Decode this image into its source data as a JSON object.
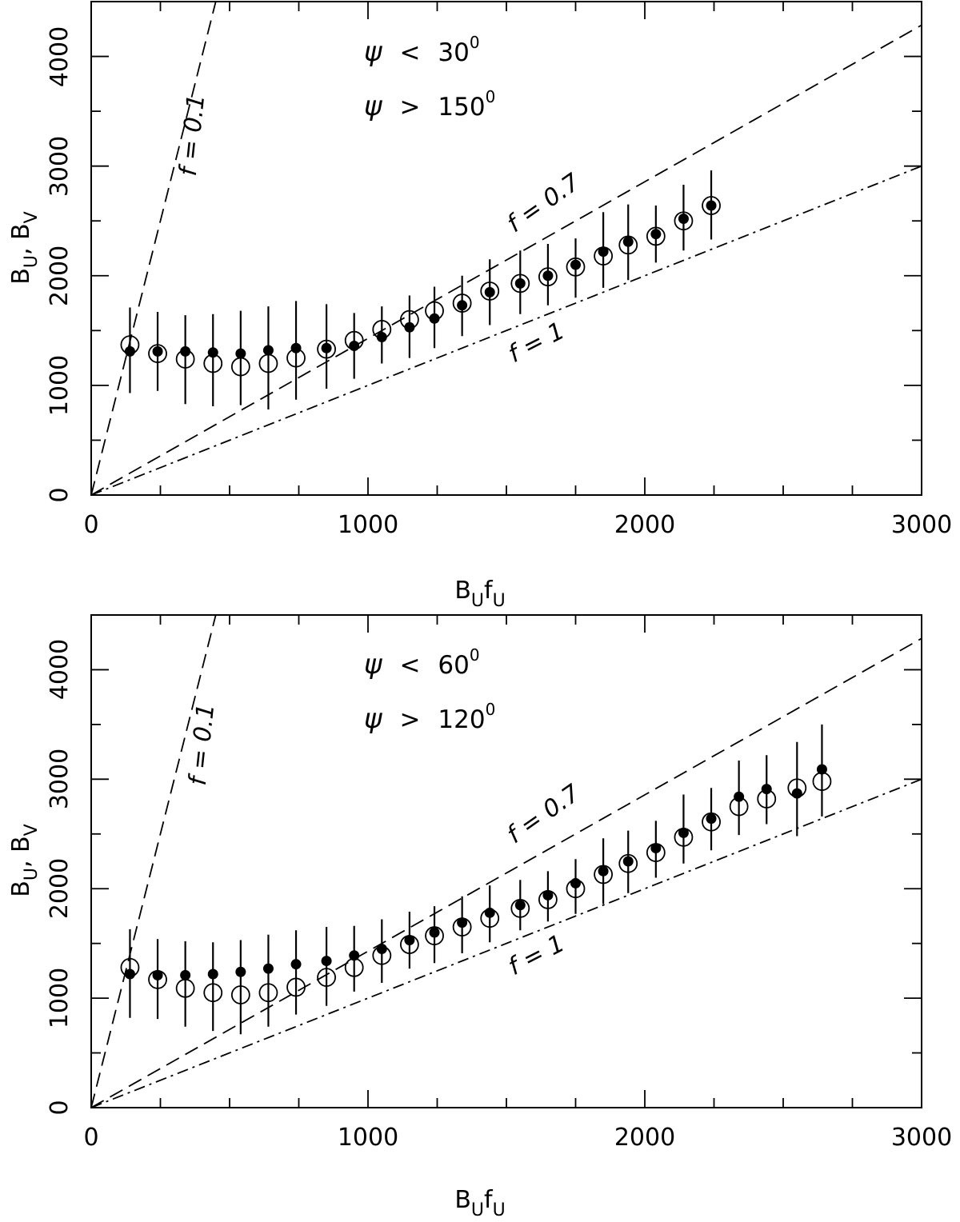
{
  "chart_data": [
    {
      "type": "scatter",
      "xlabel": {
        "main": "B",
        "sub1": "U",
        "mid": "f",
        "sub2": "U"
      },
      "ylabel": {
        "p1": "B",
        "s1": "U",
        "sep": ",  ",
        "p2": "B",
        "s2": "V"
      },
      "xlim": [
        0,
        3000
      ],
      "ylim": [
        0,
        4500
      ],
      "xticks": [
        "0",
        "1000",
        "2000",
        "3000"
      ],
      "yticks": [
        "0",
        "1000",
        "2000",
        "3000",
        "4000"
      ],
      "conditions": [
        {
          "symbol": "ψ",
          "op": "<",
          "value": "30",
          "sup": "0"
        },
        {
          "symbol": "ψ",
          "op": ">",
          "value": "150",
          "sup": "0"
        }
      ],
      "lines": [
        {
          "label": "f = 0.1",
          "slope": 10,
          "style": "dashed"
        },
        {
          "label": "f = 0.7",
          "slope": 1.4286,
          "style": "dashed"
        },
        {
          "label": "f = 1",
          "slope": 1,
          "style": "dashdot"
        }
      ],
      "series": [
        {
          "name": "open circles",
          "marker": "open",
          "x": [
            140,
            240,
            340,
            440,
            540,
            640,
            740,
            850,
            950,
            1050,
            1150,
            1240,
            1340,
            1440,
            1550,
            1650,
            1750,
            1850,
            1940,
            2040,
            2140,
            2240
          ],
          "y": [
            1370,
            1290,
            1240,
            1200,
            1170,
            1200,
            1250,
            1330,
            1410,
            1510,
            1600,
            1680,
            1750,
            1860,
            1930,
            1990,
            2080,
            2180,
            2280,
            2360,
            2500,
            2640
          ]
        },
        {
          "name": "filled circles",
          "marker": "filled",
          "x": [
            140,
            240,
            340,
            440,
            540,
            640,
            740,
            850,
            950,
            1050,
            1150,
            1240,
            1340,
            1440,
            1550,
            1650,
            1750,
            1850,
            1940,
            2040,
            2140,
            2240
          ],
          "y": [
            1310,
            1310,
            1310,
            1300,
            1290,
            1320,
            1340,
            1340,
            1360,
            1440,
            1530,
            1610,
            1730,
            1850,
            1930,
            2000,
            2100,
            2220,
            2310,
            2380,
            2520,
            2640
          ],
          "err_low": [
            930,
            950,
            830,
            810,
            820,
            780,
            870,
            970,
            1060,
            1200,
            1250,
            1340,
            1450,
            1550,
            1650,
            1730,
            1800,
            1890,
            1960,
            2120,
            2230,
            2330
          ],
          "err_high": [
            1710,
            1670,
            1640,
            1650,
            1680,
            1720,
            1770,
            1740,
            1660,
            1720,
            1820,
            1900,
            2000,
            2150,
            2230,
            2290,
            2340,
            2580,
            2650,
            2640,
            2830,
            2960
          ]
        }
      ]
    },
    {
      "type": "scatter",
      "xlabel": {
        "main": "B",
        "sub1": "U",
        "mid": "f",
        "sub2": "U"
      },
      "ylabel": {
        "p1": "B",
        "s1": "U",
        "sep": ",  ",
        "p2": "B",
        "s2": "V"
      },
      "xlim": [
        0,
        3000
      ],
      "ylim": [
        0,
        4500
      ],
      "xticks": [
        "0",
        "1000",
        "2000",
        "3000"
      ],
      "yticks": [
        "0",
        "1000",
        "2000",
        "3000",
        "4000"
      ],
      "conditions": [
        {
          "symbol": "ψ",
          "op": "<",
          "value": "60",
          "sup": "0"
        },
        {
          "symbol": "ψ",
          "op": ">",
          "value": "120",
          "sup": "0"
        }
      ],
      "lines": [
        {
          "label": "f = 0.1",
          "slope": 10,
          "style": "dashed"
        },
        {
          "label": "f = 0.7",
          "slope": 1.4286,
          "style": "dashed"
        },
        {
          "label": "f = 1",
          "slope": 1,
          "style": "dashdot"
        }
      ],
      "series": [
        {
          "name": "open circles",
          "marker": "open",
          "x": [
            140,
            240,
            340,
            440,
            540,
            640,
            740,
            850,
            950,
            1050,
            1150,
            1240,
            1340,
            1440,
            1550,
            1650,
            1750,
            1850,
            1940,
            2040,
            2140,
            2240,
            2340,
            2440,
            2550,
            2640
          ],
          "y": [
            1280,
            1170,
            1090,
            1050,
            1030,
            1050,
            1100,
            1190,
            1280,
            1390,
            1490,
            1570,
            1650,
            1730,
            1820,
            1900,
            2000,
            2130,
            2230,
            2330,
            2470,
            2610,
            2750,
            2820,
            2920,
            2980
          ]
        },
        {
          "name": "filled circles",
          "marker": "filled",
          "x": [
            140,
            240,
            340,
            440,
            540,
            640,
            740,
            850,
            950,
            1050,
            1150,
            1240,
            1340,
            1440,
            1550,
            1650,
            1750,
            1850,
            1940,
            2040,
            2140,
            2240,
            2340,
            2440,
            2550,
            2640
          ],
          "y": [
            1220,
            1210,
            1210,
            1220,
            1240,
            1270,
            1310,
            1340,
            1390,
            1450,
            1530,
            1600,
            1690,
            1780,
            1850,
            1940,
            2050,
            2160,
            2250,
            2370,
            2510,
            2640,
            2840,
            2910,
            2870,
            3090
          ],
          "err_low": [
            820,
            810,
            740,
            700,
            670,
            740,
            850,
            930,
            1060,
            1140,
            1270,
            1320,
            1410,
            1510,
            1620,
            1700,
            1770,
            1860,
            1960,
            2100,
            2230,
            2350,
            2490,
            2590,
            2480,
            2660
          ],
          "err_high": [
            1630,
            1540,
            1520,
            1510,
            1530,
            1580,
            1620,
            1650,
            1660,
            1720,
            1790,
            1840,
            1930,
            2030,
            2080,
            2160,
            2270,
            2460,
            2530,
            2620,
            2860,
            2920,
            3170,
            3220,
            3340,
            3500
          ]
        }
      ]
    }
  ]
}
